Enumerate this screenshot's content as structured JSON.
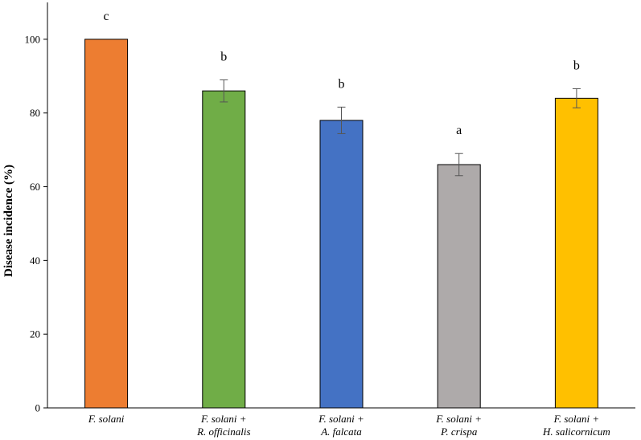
{
  "chart_data": {
    "type": "bar",
    "title": "",
    "xlabel": "",
    "ylabel": "Disease incidence (%)",
    "ylim": [
      0,
      110
    ],
    "yticks": [
      0,
      20,
      40,
      60,
      80,
      100
    ],
    "grid": false,
    "categories": [
      [
        "F. solani"
      ],
      [
        "F. solani +",
        "R. officinalis"
      ],
      [
        "F. solani +",
        "A. falcata"
      ],
      [
        "F. solani +",
        "P. crispa"
      ],
      [
        "F. solani +",
        "H. salicornicum"
      ]
    ],
    "values": [
      100,
      86,
      78,
      66,
      84
    ],
    "errors": [
      0,
      3,
      3.6,
      3,
      2.6
    ],
    "significance": [
      "c",
      "b",
      "b",
      "a",
      "b"
    ],
    "colors": [
      "#ED7D31",
      "#70AD47",
      "#4472C4",
      "#AEAAAA",
      "#FFC000"
    ]
  }
}
